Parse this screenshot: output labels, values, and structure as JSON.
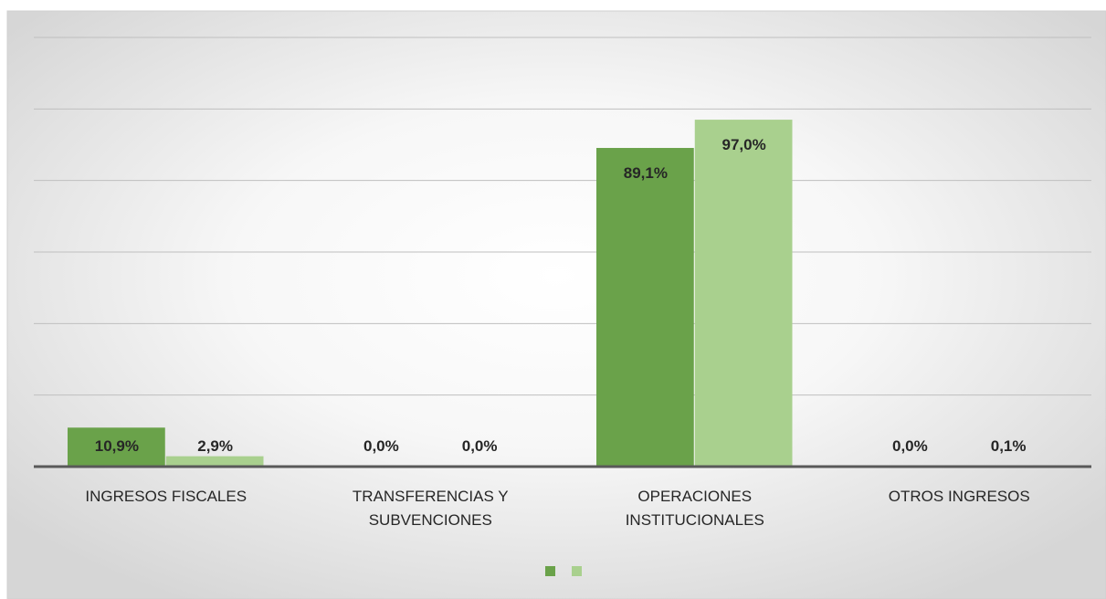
{
  "chart_data": {
    "type": "bar",
    "categories": [
      "INGRESOS FISCALES",
      "TRANSFERENCIAS Y SUBVENCIONES",
      "OPERACIONES INSTITUCIONALES",
      "OTROS INGRESOS"
    ],
    "series": [
      {
        "color": "#6aa24a",
        "values": [
          10.9,
          0.0,
          89.1,
          0.0
        ],
        "value_labels": [
          "10,9%",
          "0,0%",
          "89,1%",
          "0,0%"
        ]
      },
      {
        "color": "#a9d08e",
        "values": [
          2.9,
          0.0,
          97.0,
          0.1
        ],
        "value_labels": [
          "2,9%",
          "0,0%",
          "97,0%",
          "0,1%"
        ]
      }
    ],
    "ylim": [
      0,
      120
    ],
    "yticks": [
      0,
      20,
      40,
      60,
      80,
      100,
      120
    ],
    "grid": true
  }
}
